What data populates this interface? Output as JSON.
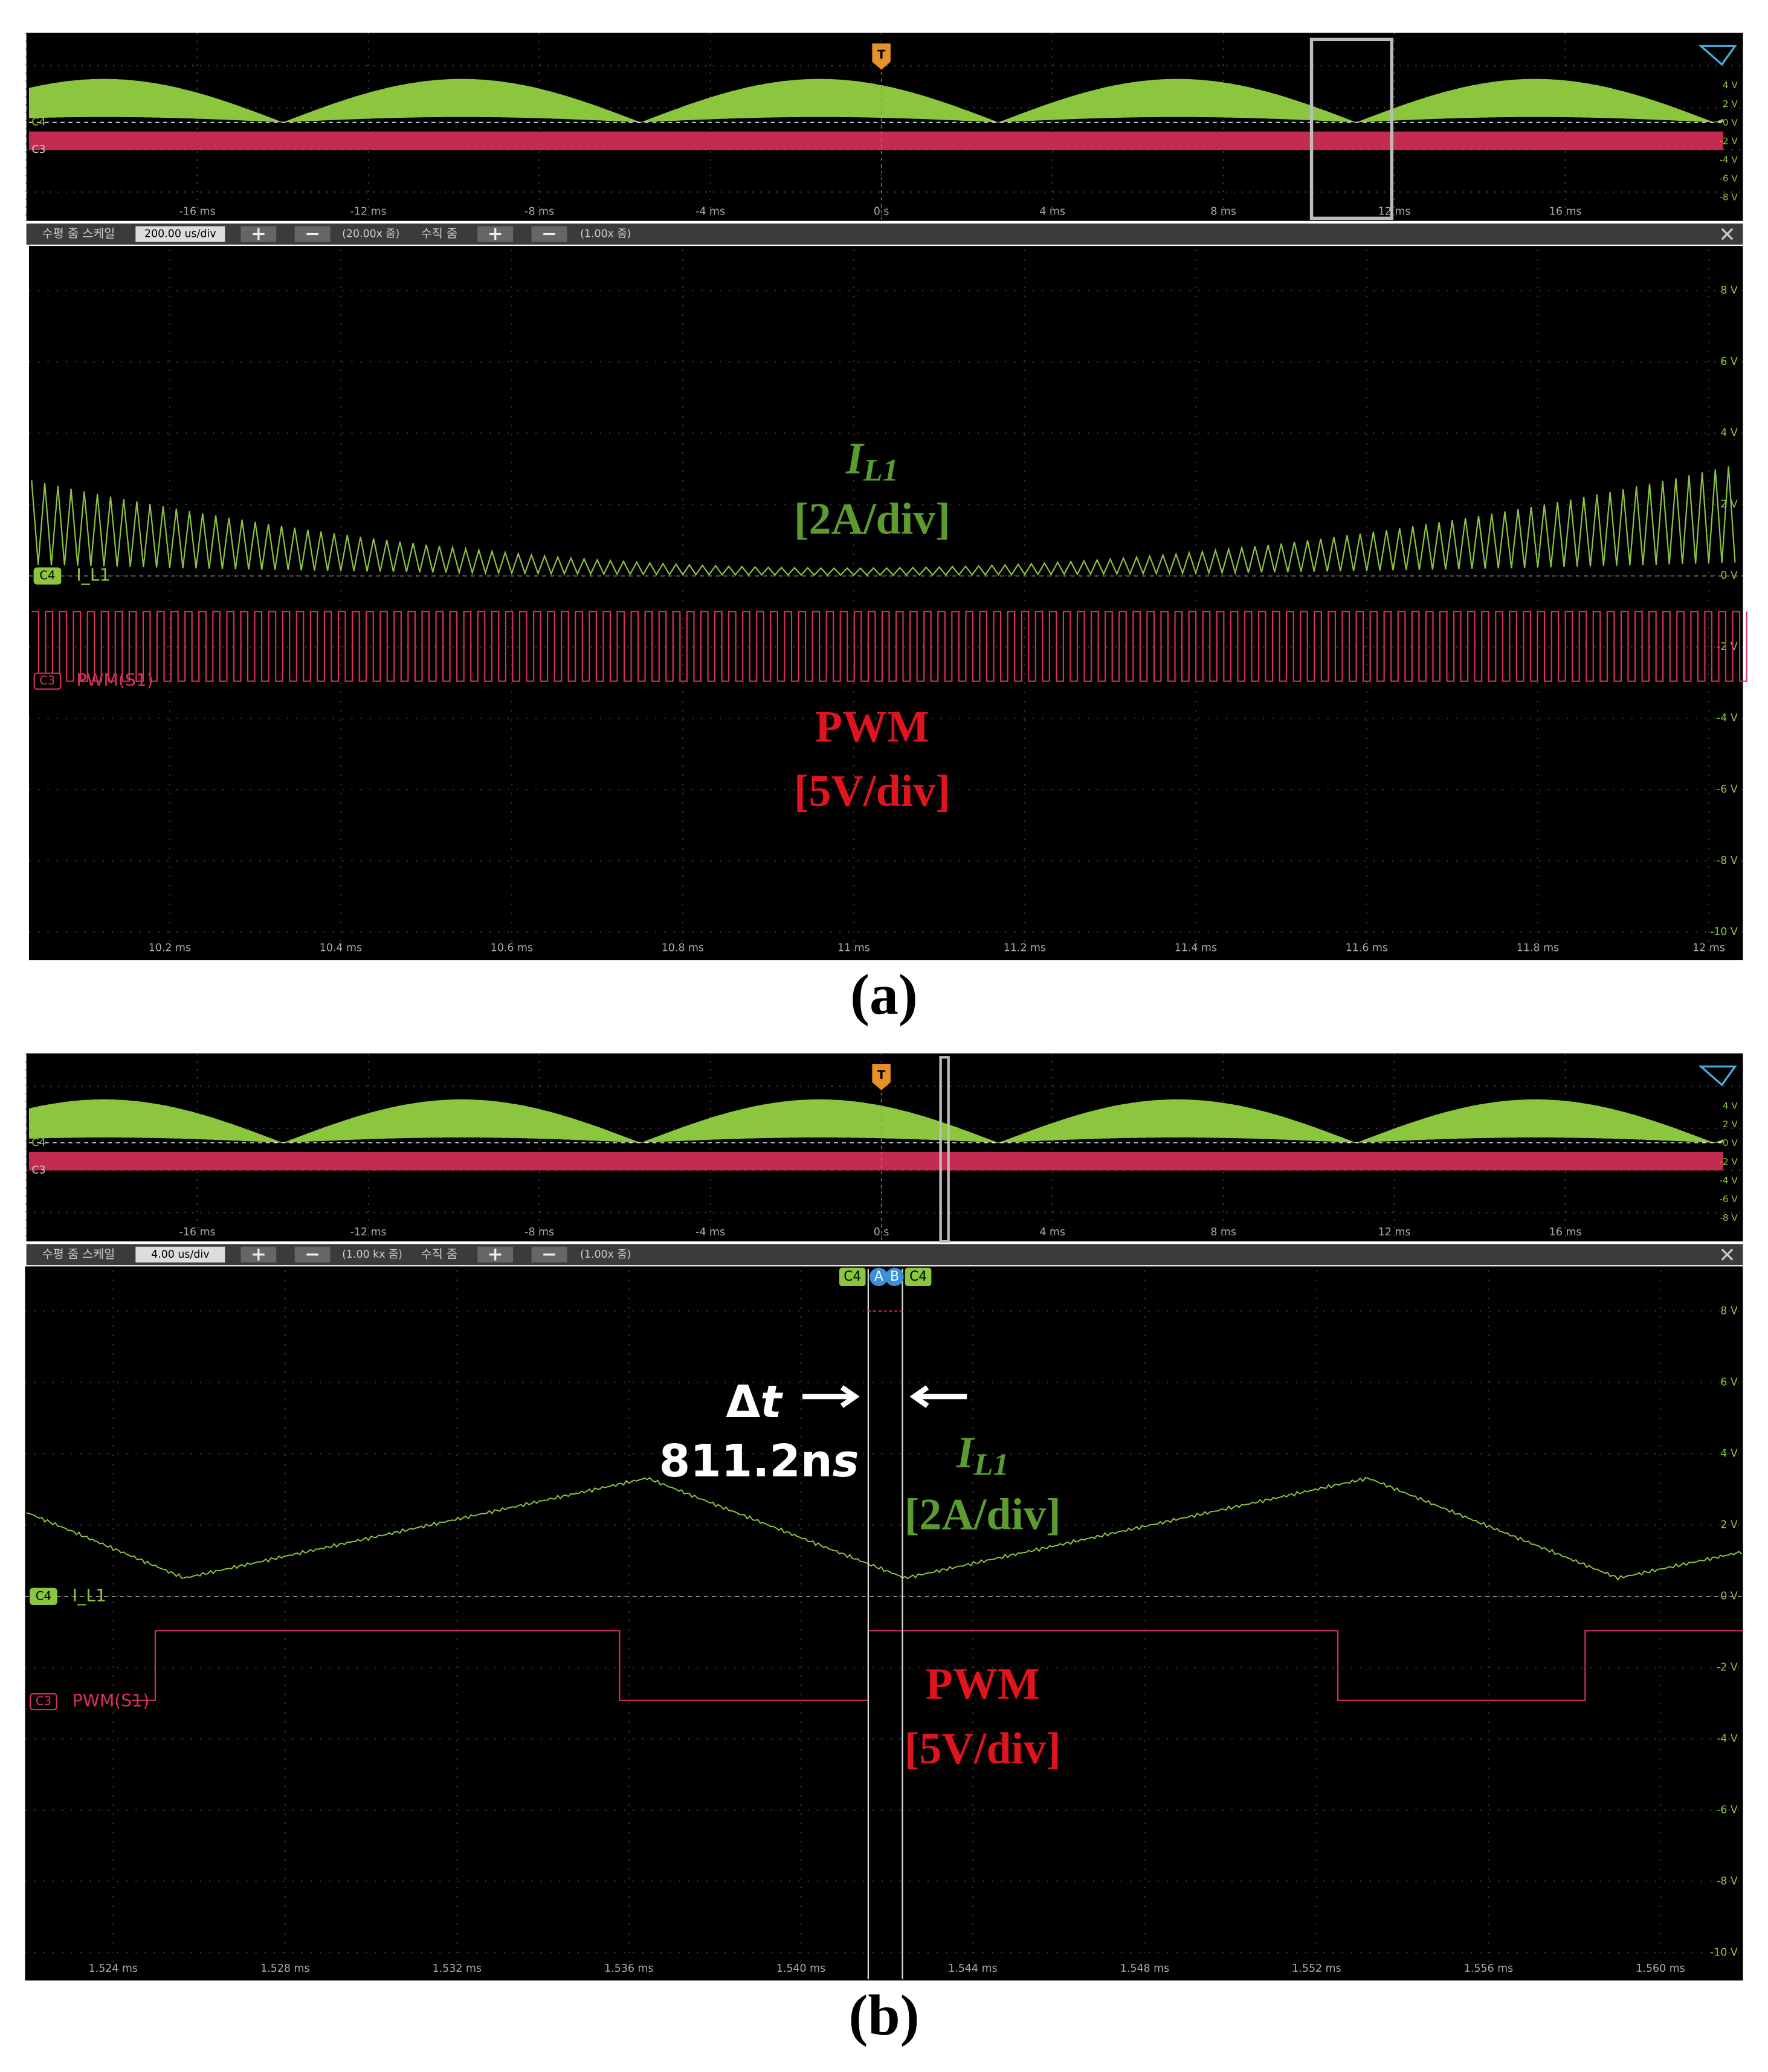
{
  "panels": [
    {
      "overview": {
        "marker": "T",
        "channels": [
          "C4",
          "C3"
        ],
        "x_ticks": [
          "-16 ms",
          "-12 ms",
          "-8 ms",
          "-4 ms",
          "0 s",
          "4 ms",
          "8 ms",
          "12 ms",
          "16 ms"
        ],
        "y_ticks": [
          "4 V",
          "2 V",
          "0 V",
          "-2 V",
          "-4 V",
          "-6 V",
          "-8 V"
        ]
      },
      "toolbar": {
        "h_zoom_label": "수평 줌 스케일",
        "h_scale": "200.00 us/div",
        "h_zoom": "(20.00x 줌)",
        "v_zoom_label": "수직 줌",
        "v_zoom": "(1.00x 줌)"
      },
      "main": {
        "y_ticks": [
          "8 V",
          "6 V",
          "4 V",
          "2 V",
          "0 V",
          "-2 V",
          "-4 V",
          "-6 V",
          "-8 V",
          "-10 V"
        ],
        "x_ticks": [
          "10.2 ms",
          "10.4 ms",
          "10.6 ms",
          "10.8 ms",
          "11 ms",
          "11.2 ms",
          "11.4 ms",
          "11.6 ms",
          "11.8 ms",
          "12 ms"
        ],
        "channels": [
          {
            "badge": "C4",
            "name": "I_L1"
          },
          {
            "badge": "C3",
            "name": "PWM(S1)"
          }
        ]
      },
      "annotations": {
        "current_symbol": "I",
        "current_sub": "L1",
        "current_scale": "[2A/div]",
        "pwm": "PWM",
        "pwm_scale": "[5V/div]"
      },
      "caption": "(a)"
    },
    {
      "overview": {
        "marker": "T",
        "channels": [
          "C4",
          "C3"
        ],
        "x_ticks": [
          "-16 ms",
          "-12 ms",
          "-8 ms",
          "-4 ms",
          "0 s",
          "4 ms",
          "8 ms",
          "12 ms",
          "16 ms"
        ],
        "y_ticks": [
          "4 V",
          "2 V",
          "0 V",
          "-2 V",
          "-4 V",
          "-6 V",
          "-8 V"
        ]
      },
      "toolbar": {
        "h_zoom_label": "수평 줌 스케일",
        "h_scale": "4.00 us/div",
        "h_zoom": "(1.00 kx 줌)",
        "v_zoom_label": "수직 줌",
        "v_zoom": "(1.00x 줌)"
      },
      "main": {
        "y_ticks": [
          "8 V",
          "6 V",
          "4 V",
          "2 V",
          "0 V",
          "-2 V",
          "-4 V",
          "-6 V",
          "-8 V",
          "-10 V"
        ],
        "x_ticks": [
          "1.524 ms",
          "1.528 ms",
          "1.532 ms",
          "1.536 ms",
          "1.540 ms",
          "1.544 ms",
          "1.548 ms",
          "1.552 ms",
          "1.556 ms",
          "1.560 ms"
        ],
        "channels": [
          {
            "badge": "C4",
            "name": "I_L1"
          },
          {
            "badge": "C3",
            "name": "PWM(S1)"
          }
        ]
      },
      "cursors": [
        "C4",
        "A",
        "B",
        "C4"
      ],
      "delta": {
        "symbol": "Δ",
        "variable": "t",
        "value": "811.2n",
        "unit": "s"
      },
      "annotations": {
        "current_symbol": "I",
        "current_sub": "L1",
        "current_scale": "[2A/div]",
        "pwm": "PWM",
        "pwm_scale": "[5V/div]"
      },
      "caption": "(b)"
    }
  ]
}
